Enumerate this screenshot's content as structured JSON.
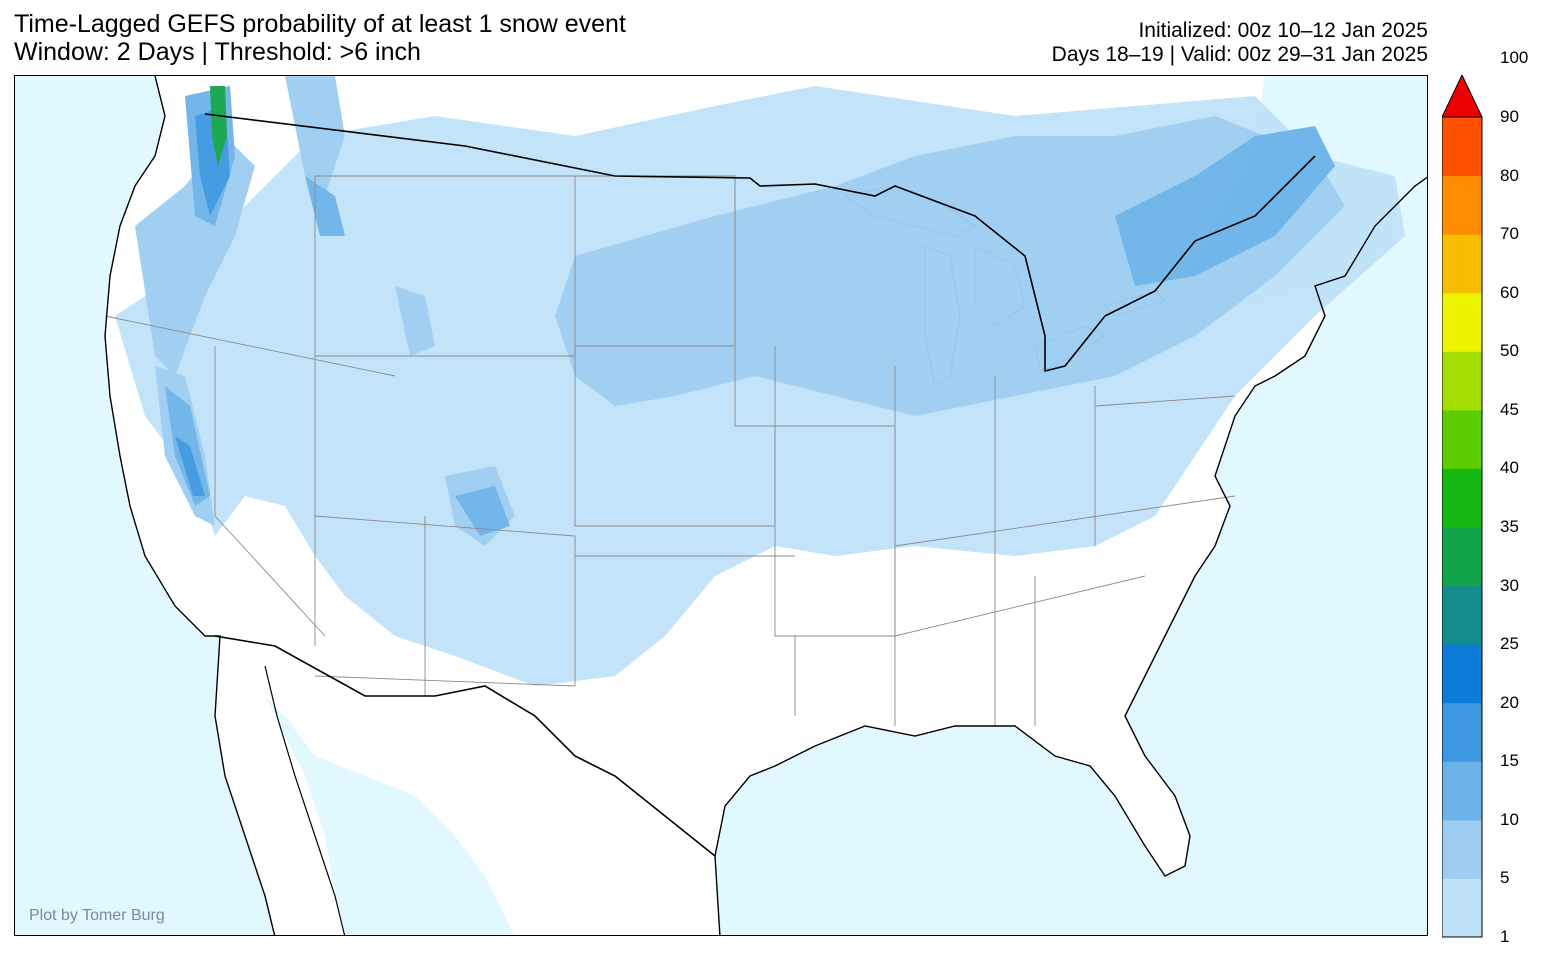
{
  "title": {
    "line1": "Time-Lagged GEFS probability of at least 1 snow event",
    "line2": "Window: 2 Days | Threshold: >6 inch"
  },
  "meta": {
    "line1": "Initialized: 00z 10–12 Jan 2025",
    "line2": "Days 18–19 | Valid: 00z 29–31 Jan 2025"
  },
  "credit": "Plot by Tomer Burg",
  "colors": {
    "ocean": "#e2f8ff",
    "land": "#ffffff",
    "border": "#000000",
    "state_lines": "#8a8a8a"
  },
  "colorbar": {
    "levels": [
      "1",
      "5",
      "10",
      "15",
      "20",
      "25",
      "30",
      "35",
      "40",
      "45",
      "50",
      "60",
      "70",
      "80",
      "90",
      "100"
    ],
    "colors": [
      "#c0e2f8",
      "#9dcdf2",
      "#6cb3e9",
      "#3d97e0",
      "#0c7bd8",
      "#128d8c",
      "#12a44a",
      "#16b812",
      "#5cce00",
      "#a4de00",
      "#eef400",
      "#f7bd00",
      "#ff8c00",
      "#ff5000",
      "#ee0000"
    ],
    "extend": "max"
  }
}
